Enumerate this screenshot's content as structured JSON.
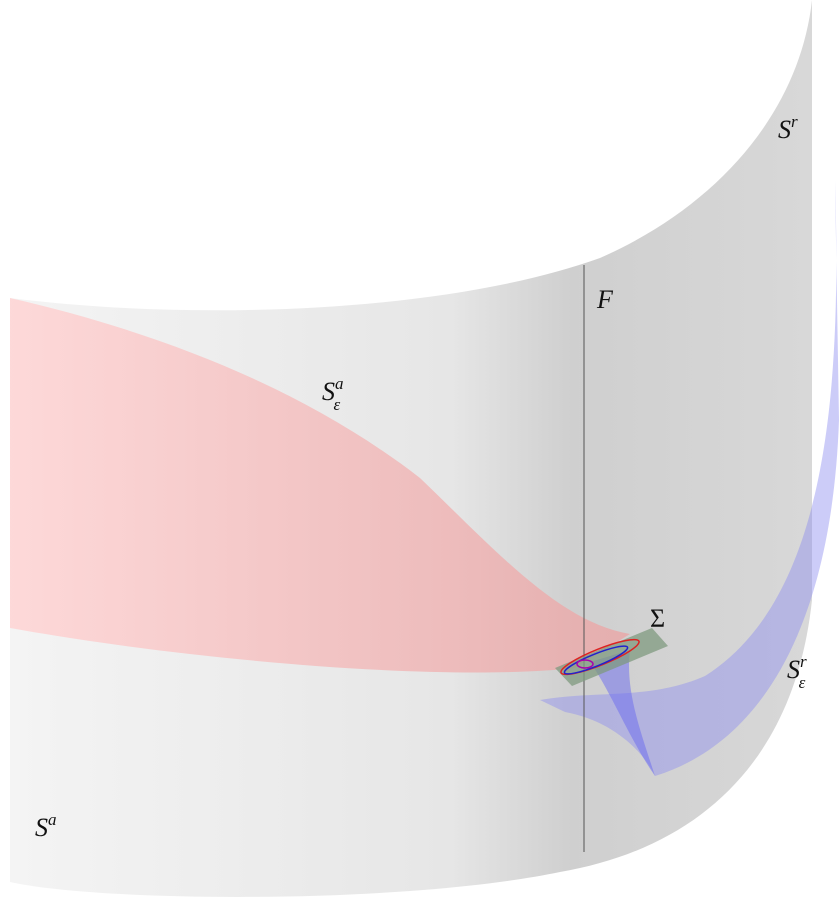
{
  "labels": [
    {
      "base": "S",
      "sup": "r"
    },
    {
      "base": "F"
    },
    {
      "base": "S",
      "sup": "a",
      "sub": "ε"
    },
    {
      "base": "Σ"
    },
    {
      "base": "S",
      "sup": "r",
      "sub": "ε"
    },
    {
      "base": "S",
      "sup": "a"
    }
  ]
}
